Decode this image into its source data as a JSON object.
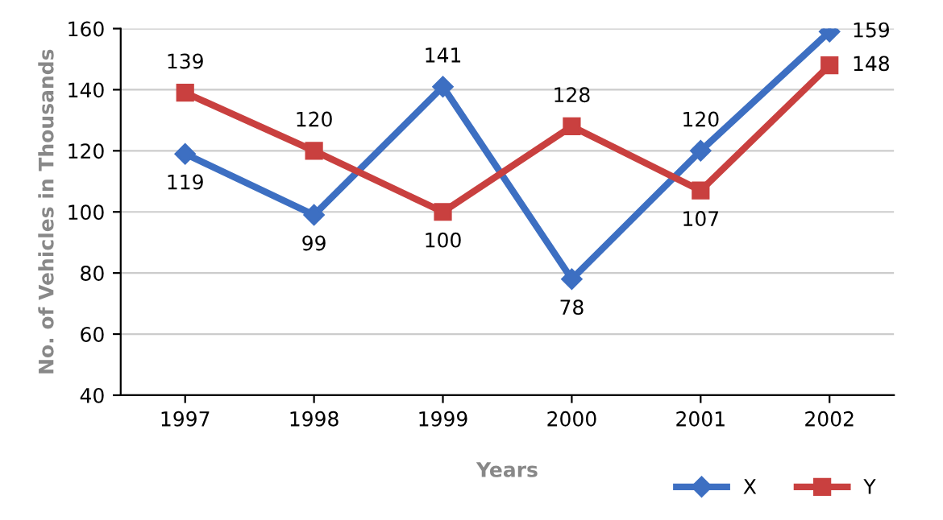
{
  "chart_data": {
    "type": "line",
    "xlabel": "Years",
    "ylabel": "No. of Vehicles in Thousands",
    "categories": [
      "1997",
      "1998",
      "1999",
      "2000",
      "2001",
      "2002"
    ],
    "series": [
      {
        "name": "X",
        "color": "#3d6fc2",
        "marker": "diamond",
        "values": [
          119,
          99,
          141,
          78,
          120,
          159
        ]
      },
      {
        "name": "Y",
        "color": "#c9403f",
        "marker": "square",
        "values": [
          139,
          120,
          100,
          128,
          107,
          148
        ]
      }
    ],
    "ylim": [
      40,
      160
    ],
    "yticks": [
      40,
      60,
      80,
      100,
      120,
      140,
      160
    ],
    "grid": "y",
    "legend": "bottom right",
    "data_labels": true,
    "line_style": "solid"
  }
}
